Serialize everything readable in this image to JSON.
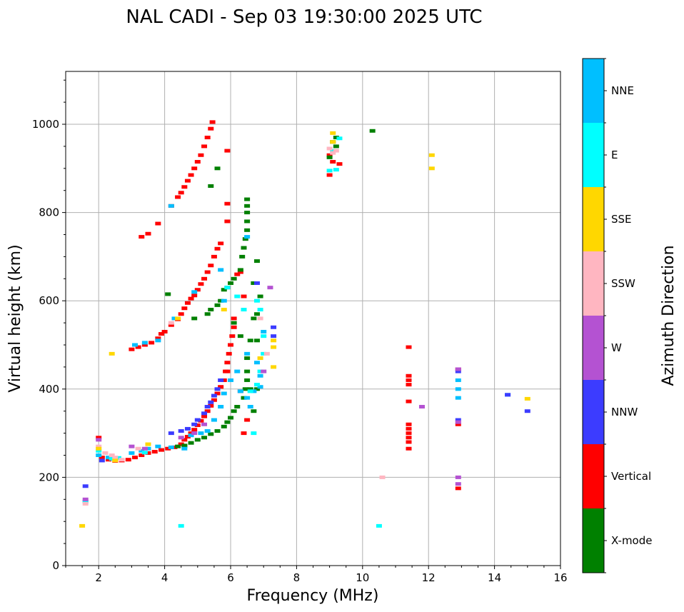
{
  "chart_data": {
    "type": "scatter",
    "title": "NAL CADI - Sep 03 19:30:00 2025 UTC",
    "xlabel": "Frequency (MHz)",
    "ylabel": "Virtual height (km)",
    "xlim": [
      1,
      16
    ],
    "ylim": [
      0,
      1120
    ],
    "xticks": [
      2,
      4,
      6,
      8,
      10,
      12,
      14,
      16
    ],
    "yticks": [
      0,
      200,
      400,
      600,
      800,
      1000
    ],
    "grid": true,
    "colorbar": {
      "label": "Azimuth Direction",
      "placement": "right",
      "categories": [
        {
          "name": "X-mode",
          "color": "#008000"
        },
        {
          "name": "Vertical",
          "color": "#ff0000"
        },
        {
          "name": "NNW",
          "color": "#3c3cff"
        },
        {
          "name": "W",
          "color": "#b452d2"
        },
        {
          "name": "SSW",
          "color": "#ffb6c1"
        },
        {
          "name": "SSE",
          "color": "#ffd700"
        },
        {
          "name": "E",
          "color": "#00ffff"
        },
        {
          "name": "NNE",
          "color": "#00bfff"
        }
      ]
    },
    "series": [
      {
        "name": "Vertical",
        "points": [
          [
            2.0,
            290
          ],
          [
            2.1,
            245
          ],
          [
            2.3,
            240
          ],
          [
            2.5,
            237
          ],
          [
            2.7,
            238
          ],
          [
            2.9,
            240
          ],
          [
            3.1,
            245
          ],
          [
            3.3,
            250
          ],
          [
            3.5,
            255
          ],
          [
            3.7,
            258
          ],
          [
            3.9,
            262
          ],
          [
            4.1,
            265
          ],
          [
            4.3,
            268
          ],
          [
            4.5,
            275
          ],
          [
            4.6,
            285
          ],
          [
            4.7,
            292
          ],
          [
            4.8,
            300
          ],
          [
            4.9,
            308
          ],
          [
            5.0,
            318
          ],
          [
            5.1,
            328
          ],
          [
            5.2,
            338
          ],
          [
            5.3,
            350
          ],
          [
            5.4,
            362
          ],
          [
            5.5,
            375
          ],
          [
            5.6,
            390
          ],
          [
            5.7,
            405
          ],
          [
            5.8,
            420
          ],
          [
            5.85,
            440
          ],
          [
            5.9,
            460
          ],
          [
            5.95,
            480
          ],
          [
            6.0,
            500
          ],
          [
            6.05,
            520
          ],
          [
            6.1,
            540
          ],
          [
            6.1,
            560
          ],
          [
            3.0,
            490
          ],
          [
            3.2,
            495
          ],
          [
            3.4,
            500
          ],
          [
            3.6,
            505
          ],
          [
            3.8,
            515
          ],
          [
            3.9,
            525
          ],
          [
            4.0,
            530
          ],
          [
            4.2,
            545
          ],
          [
            4.4,
            558
          ],
          [
            4.5,
            570
          ],
          [
            4.6,
            583
          ],
          [
            4.7,
            595
          ],
          [
            4.8,
            605
          ],
          [
            4.9,
            612
          ],
          [
            5.0,
            625
          ],
          [
            5.1,
            638
          ],
          [
            5.2,
            650
          ],
          [
            5.3,
            665
          ],
          [
            5.4,
            680
          ],
          [
            5.5,
            700
          ],
          [
            5.6,
            718
          ],
          [
            5.7,
            730
          ],
          [
            6.2,
            660
          ],
          [
            6.3,
            665
          ],
          [
            6.4,
            610
          ],
          [
            3.3,
            745
          ],
          [
            3.5,
            752
          ],
          [
            3.8,
            775
          ],
          [
            4.2,
            815
          ],
          [
            4.4,
            835
          ],
          [
            4.5,
            845
          ],
          [
            4.6,
            858
          ],
          [
            4.7,
            872
          ],
          [
            4.8,
            885
          ],
          [
            4.9,
            900
          ],
          [
            5.0,
            915
          ],
          [
            5.1,
            930
          ],
          [
            5.2,
            950
          ],
          [
            5.3,
            970
          ],
          [
            5.4,
            990
          ],
          [
            5.45,
            1005
          ],
          [
            5.9,
            940
          ],
          [
            5.9,
            820
          ],
          [
            5.9,
            780
          ],
          [
            5.9,
            440
          ],
          [
            6.3,
            395
          ],
          [
            6.5,
            330
          ],
          [
            6.4,
            300
          ],
          [
            9.0,
            885
          ],
          [
            9.1,
            915
          ],
          [
            9.0,
            930
          ],
          [
            9.3,
            910
          ],
          [
            11.4,
            495
          ],
          [
            11.4,
            430
          ],
          [
            11.4,
            420
          ],
          [
            11.4,
            410
          ],
          [
            11.4,
            372
          ],
          [
            11.4,
            320
          ],
          [
            11.4,
            310
          ],
          [
            11.4,
            300
          ],
          [
            11.4,
            290
          ],
          [
            11.4,
            280
          ],
          [
            11.4,
            265
          ],
          [
            12.9,
            175
          ],
          [
            12.9,
            320
          ],
          [
            12.9,
            445
          ]
        ]
      },
      {
        "name": "X-mode",
        "points": [
          [
            4.4,
            270
          ],
          [
            4.6,
            272
          ],
          [
            4.8,
            278
          ],
          [
            5.0,
            285
          ],
          [
            5.2,
            290
          ],
          [
            5.4,
            298
          ],
          [
            5.6,
            305
          ],
          [
            5.8,
            315
          ],
          [
            5.9,
            325
          ],
          [
            6.0,
            335
          ],
          [
            6.1,
            350
          ],
          [
            6.2,
            360
          ],
          [
            6.4,
            380
          ],
          [
            6.45,
            400
          ],
          [
            6.5,
            420
          ],
          [
            6.5,
            440
          ],
          [
            6.5,
            470
          ],
          [
            6.6,
            400
          ],
          [
            6.7,
            350
          ],
          [
            6.8,
            400
          ],
          [
            5.3,
            570
          ],
          [
            5.4,
            580
          ],
          [
            5.6,
            590
          ],
          [
            5.7,
            600
          ],
          [
            5.8,
            625
          ],
          [
            5.9,
            630
          ],
          [
            6.0,
            640
          ],
          [
            6.1,
            650
          ],
          [
            6.3,
            670
          ],
          [
            6.35,
            700
          ],
          [
            6.4,
            720
          ],
          [
            6.45,
            740
          ],
          [
            6.5,
            760
          ],
          [
            6.5,
            780
          ],
          [
            6.5,
            800
          ],
          [
            6.5,
            815
          ],
          [
            6.5,
            830
          ],
          [
            6.1,
            550
          ],
          [
            6.3,
            520
          ],
          [
            6.6,
            510
          ],
          [
            6.8,
            510
          ],
          [
            6.7,
            560
          ],
          [
            6.8,
            570
          ],
          [
            6.9,
            610
          ],
          [
            6.7,
            640
          ],
          [
            6.8,
            690
          ],
          [
            5.6,
            900
          ],
          [
            5.4,
            860
          ],
          [
            4.9,
            560
          ],
          [
            4.6,
            270
          ],
          [
            9.2,
            970
          ],
          [
            9.1,
            960
          ],
          [
            9.2,
            950
          ],
          [
            9.0,
            925
          ],
          [
            10.3,
            985
          ],
          [
            4.1,
            615
          ]
        ]
      },
      {
        "name": "NNE",
        "points": [
          [
            2.0,
            250
          ],
          [
            2.3,
            245
          ],
          [
            3.0,
            255
          ],
          [
            3.3,
            260
          ],
          [
            3.5,
            265
          ],
          [
            3.8,
            270
          ],
          [
            4.2,
            268
          ],
          [
            4.6,
            265
          ],
          [
            4.8,
            295
          ],
          [
            5.1,
            300
          ],
          [
            5.3,
            305
          ],
          [
            5.5,
            330
          ],
          [
            5.7,
            360
          ],
          [
            5.8,
            390
          ],
          [
            6.0,
            420
          ],
          [
            6.2,
            440
          ],
          [
            6.3,
            395
          ],
          [
            6.5,
            380
          ],
          [
            6.6,
            360
          ],
          [
            6.7,
            395
          ],
          [
            6.9,
            405
          ],
          [
            5.8,
            600
          ],
          [
            5.7,
            670
          ],
          [
            4.9,
            620
          ],
          [
            4.2,
            815
          ],
          [
            4.3,
            560
          ],
          [
            3.1,
            500
          ],
          [
            3.4,
            505
          ],
          [
            3.8,
            510
          ],
          [
            1.6,
            145
          ],
          [
            6.5,
            745
          ],
          [
            6.5,
            480
          ],
          [
            12.9,
            420
          ],
          [
            12.9,
            380
          ],
          [
            12.9,
            400
          ],
          [
            14.4,
            387
          ],
          [
            7.0,
            530
          ],
          [
            6.8,
            460
          ],
          [
            6.9,
            430
          ]
        ]
      },
      {
        "name": "E",
        "points": [
          [
            2.0,
            260
          ],
          [
            2.4,
            242
          ],
          [
            2.6,
            244
          ],
          [
            3.4,
            256
          ],
          [
            4.5,
            90
          ],
          [
            10.5,
            90
          ],
          [
            9.3,
            968
          ],
          [
            9.1,
            940
          ],
          [
            9.0,
            895
          ],
          [
            9.2,
            897
          ],
          [
            6.8,
            600
          ],
          [
            6.9,
            580
          ],
          [
            7.0,
            520
          ],
          [
            7.0,
            480
          ],
          [
            6.9,
            440
          ],
          [
            6.8,
            410
          ],
          [
            6.7,
            300
          ],
          [
            6.6,
            395
          ],
          [
            5.9,
            630
          ],
          [
            6.2,
            610
          ],
          [
            6.4,
            580
          ],
          [
            1.6,
            145
          ]
        ]
      },
      {
        "name": "NNW",
        "points": [
          [
            1.6,
            180
          ],
          [
            2.1,
            238
          ],
          [
            4.2,
            300
          ],
          [
            4.5,
            305
          ],
          [
            4.7,
            310
          ],
          [
            4.9,
            320
          ],
          [
            5.0,
            330
          ],
          [
            5.2,
            345
          ],
          [
            5.3,
            360
          ],
          [
            5.4,
            370
          ],
          [
            5.5,
            385
          ],
          [
            5.6,
            400
          ],
          [
            5.7,
            420
          ],
          [
            7.3,
            540
          ],
          [
            7.3,
            520
          ],
          [
            6.8,
            640
          ],
          [
            14.4,
            387
          ],
          [
            15.0,
            350
          ],
          [
            12.9,
            440
          ],
          [
            12.9,
            330
          ]
        ]
      },
      {
        "name": "W",
        "points": [
          [
            2.0,
            285
          ],
          [
            3.0,
            270
          ],
          [
            3.4,
            265
          ],
          [
            4.5,
            290
          ],
          [
            4.9,
            300
          ],
          [
            5.2,
            320
          ],
          [
            7.2,
            630
          ],
          [
            7.0,
            440
          ],
          [
            11.8,
            360
          ],
          [
            12.9,
            445
          ],
          [
            12.9,
            325
          ],
          [
            12.9,
            200
          ],
          [
            12.9,
            185
          ],
          [
            1.6,
            150
          ]
        ]
      },
      {
        "name": "SSW",
        "points": [
          [
            2.0,
            270
          ],
          [
            2.2,
            255
          ],
          [
            2.4,
            250
          ],
          [
            2.5,
            245
          ],
          [
            2.7,
            240
          ],
          [
            3.2,
            265
          ],
          [
            9.0,
            945
          ],
          [
            9.1,
            935
          ],
          [
            9.2,
            940
          ],
          [
            10.6,
            200
          ],
          [
            1.6,
            140
          ],
          [
            4.2,
            550
          ],
          [
            6.9,
            560
          ],
          [
            7.1,
            480
          ]
        ]
      },
      {
        "name": "SSE",
        "points": [
          [
            1.5,
            90
          ],
          [
            2.0,
            265
          ],
          [
            2.4,
            480
          ],
          [
            2.5,
            238
          ],
          [
            3.5,
            275
          ],
          [
            9.1,
            980
          ],
          [
            9.1,
            960
          ],
          [
            12.1,
            930
          ],
          [
            12.1,
            900
          ],
          [
            15.0,
            378
          ],
          [
            7.3,
            510
          ],
          [
            7.3,
            495
          ],
          [
            7.3,
            450
          ],
          [
            6.9,
            470
          ],
          [
            4.4,
            560
          ],
          [
            5.8,
            580
          ]
        ]
      }
    ]
  }
}
